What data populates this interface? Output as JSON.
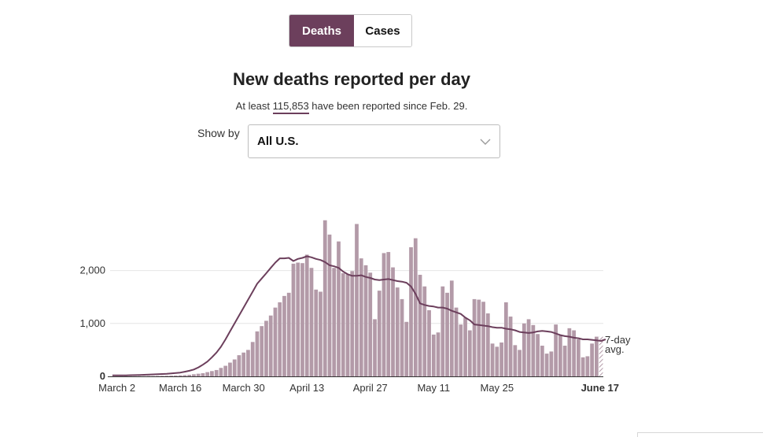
{
  "toggle": {
    "deaths_label": "Deaths",
    "cases_label": "Cases"
  },
  "title": "New deaths reported per day",
  "subtitle": {
    "prefix": "At least ",
    "total": "115,853",
    "suffix": " have been reported since Feb. 29."
  },
  "show_by": {
    "label": "Show by",
    "selected": "All U.S."
  },
  "colors": {
    "bar": "#b39aa8",
    "line": "#6c3f5c",
    "accent": "#6c3f5c"
  },
  "chart_data": {
    "type": "bar",
    "title": "New deaths reported per day",
    "ylim": [
      0,
      3000
    ],
    "y_ticks": [
      0,
      1000,
      2000
    ],
    "y_tick_labels": [
      "0",
      "1,000",
      "2,000"
    ],
    "x_labels": [
      "March 2",
      "March 16",
      "March 30",
      "April 13",
      "April 27",
      "May 11",
      "May 25",
      "June 17"
    ],
    "x_label_days": [
      2,
      16,
      30,
      44,
      58,
      72,
      86,
      109
    ],
    "last_day": 109,
    "avg_label_1": "7-day",
    "avg_label_2": "avg.",
    "series": [
      {
        "name": "New deaths",
        "values": [
          1,
          2,
          3,
          4,
          3,
          3,
          4,
          5,
          7,
          6,
          8,
          10,
          12,
          14,
          16,
          20,
          24,
          30,
          40,
          50,
          60,
          80,
          100,
          120,
          160,
          200,
          260,
          320,
          400,
          450,
          500,
          650,
          850,
          950,
          1050,
          1150,
          1300,
          1400,
          1520,
          1580,
          2130,
          2150,
          2140,
          2300,
          2050,
          1640,
          1600,
          2950,
          2680,
          2050,
          2550,
          1950,
          1930,
          1990,
          2880,
          2230,
          2100,
          1960,
          1080,
          1620,
          2330,
          2350,
          2060,
          1680,
          1460,
          1030,
          2440,
          2610,
          1920,
          1700,
          1250,
          790,
          830,
          1700,
          1580,
          1810,
          1300,
          980,
          1110,
          870,
          1460,
          1450,
          1410,
          1190,
          620,
          560,
          640,
          1400,
          1130,
          590,
          500,
          1000,
          1080,
          970,
          800,
          580,
          430,
          470,
          980,
          780,
          580,
          910,
          870,
          700,
          360,
          380,
          620,
          750,
          760
        ],
        "hatched_last": true
      },
      {
        "name": "7-day avg.",
        "values": [
          20,
          20,
          20,
          20,
          22,
          24,
          27,
          30,
          33,
          37,
          40,
          45,
          48,
          55,
          63,
          72,
          88,
          105,
          130,
          170,
          220,
          280,
          360,
          450,
          560,
          700,
          850,
          1000,
          1150,
          1300,
          1450,
          1600,
          1750,
          1850,
          1950,
          2050,
          2150,
          2230,
          2230,
          2240,
          2180,
          2220,
          2240,
          2270,
          2250,
          2220,
          2200,
          2160,
          2100,
          2080,
          2050,
          1980,
          1930,
          1900,
          1900,
          1910,
          1880,
          1860,
          1830,
          1820,
          1830,
          1840,
          1820,
          1800,
          1790,
          1770,
          1700,
          1560,
          1380,
          1350,
          1330,
          1320,
          1300,
          1300,
          1280,
          1240,
          1210,
          1180,
          1110,
          1060,
          980,
          970,
          960,
          950,
          930,
          920,
          920,
          900,
          890,
          870,
          840,
          830,
          820,
          830,
          850,
          860,
          850,
          840,
          810,
          780,
          760,
          750,
          730,
          720,
          700,
          700,
          690,
          680,
          670,
          700
        ]
      }
    ]
  }
}
